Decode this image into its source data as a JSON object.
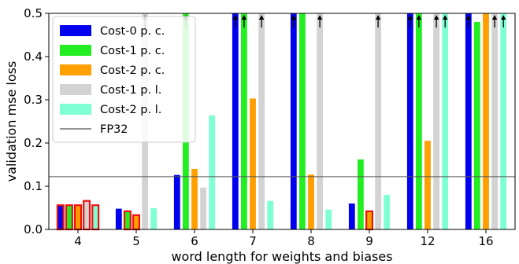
{
  "chart_data": {
    "type": "bar",
    "xlabel": "word length for weights and biases",
    "ylabel": "validation mse loss",
    "ylim": [
      0,
      0.5
    ],
    "yticks": [
      "0.0",
      "0.1",
      "0.2",
      "0.3",
      "0.4",
      "0.5"
    ],
    "categories": [
      "4",
      "5",
      "6",
      "7",
      "8",
      "9",
      "12",
      "16"
    ],
    "fp32_reference": 0.122,
    "legend_position": "top-left",
    "series": [
      {
        "name": "Cost-0 p. c.",
        "color": "#0000ee",
        "values": [
          0.056,
          0.048,
          0.126,
          0.5,
          0.5,
          0.06,
          0.5,
          0.5
        ],
        "exceeds_axis": [
          false,
          false,
          false,
          true,
          true,
          false,
          true,
          true
        ]
      },
      {
        "name": "Cost-1 p. c.",
        "color": "#22ee22",
        "values": [
          0.056,
          0.042,
          0.5,
          0.5,
          0.5,
          0.162,
          0.5,
          0.48
        ],
        "exceeds_axis": [
          false,
          false,
          true,
          true,
          false,
          false,
          true,
          false
        ]
      },
      {
        "name": "Cost-2 p. c.",
        "color": "#ffa000",
        "values": [
          0.056,
          0.033,
          0.14,
          0.303,
          0.127,
          0.042,
          0.205,
          0.5
        ],
        "exceeds_axis": [
          false,
          false,
          false,
          false,
          false,
          false,
          false,
          false
        ]
      },
      {
        "name": "Cost-1 p. l.",
        "color": "#d3d3d3",
        "values": [
          0.066,
          0.5,
          0.097,
          0.5,
          0.5,
          0.5,
          0.5,
          0.5
        ],
        "exceeds_axis": [
          false,
          true,
          false,
          true,
          true,
          true,
          true,
          true
        ]
      },
      {
        "name": "Cost-2 p. l.",
        "color": "#7fffd4",
        "values": [
          0.056,
          0.049,
          0.264,
          0.066,
          0.046,
          0.08,
          0.5,
          0.5
        ],
        "exceeds_axis": [
          false,
          false,
          false,
          false,
          false,
          false,
          true,
          true
        ]
      }
    ],
    "reference_line_label": "FP32",
    "highlighted_categories": [
      "4"
    ],
    "highlighted_bars": [
      {
        "category": "9",
        "series": 2
      },
      {
        "category": "5",
        "series": 1
      },
      {
        "category": "5",
        "series": 2
      }
    ]
  }
}
